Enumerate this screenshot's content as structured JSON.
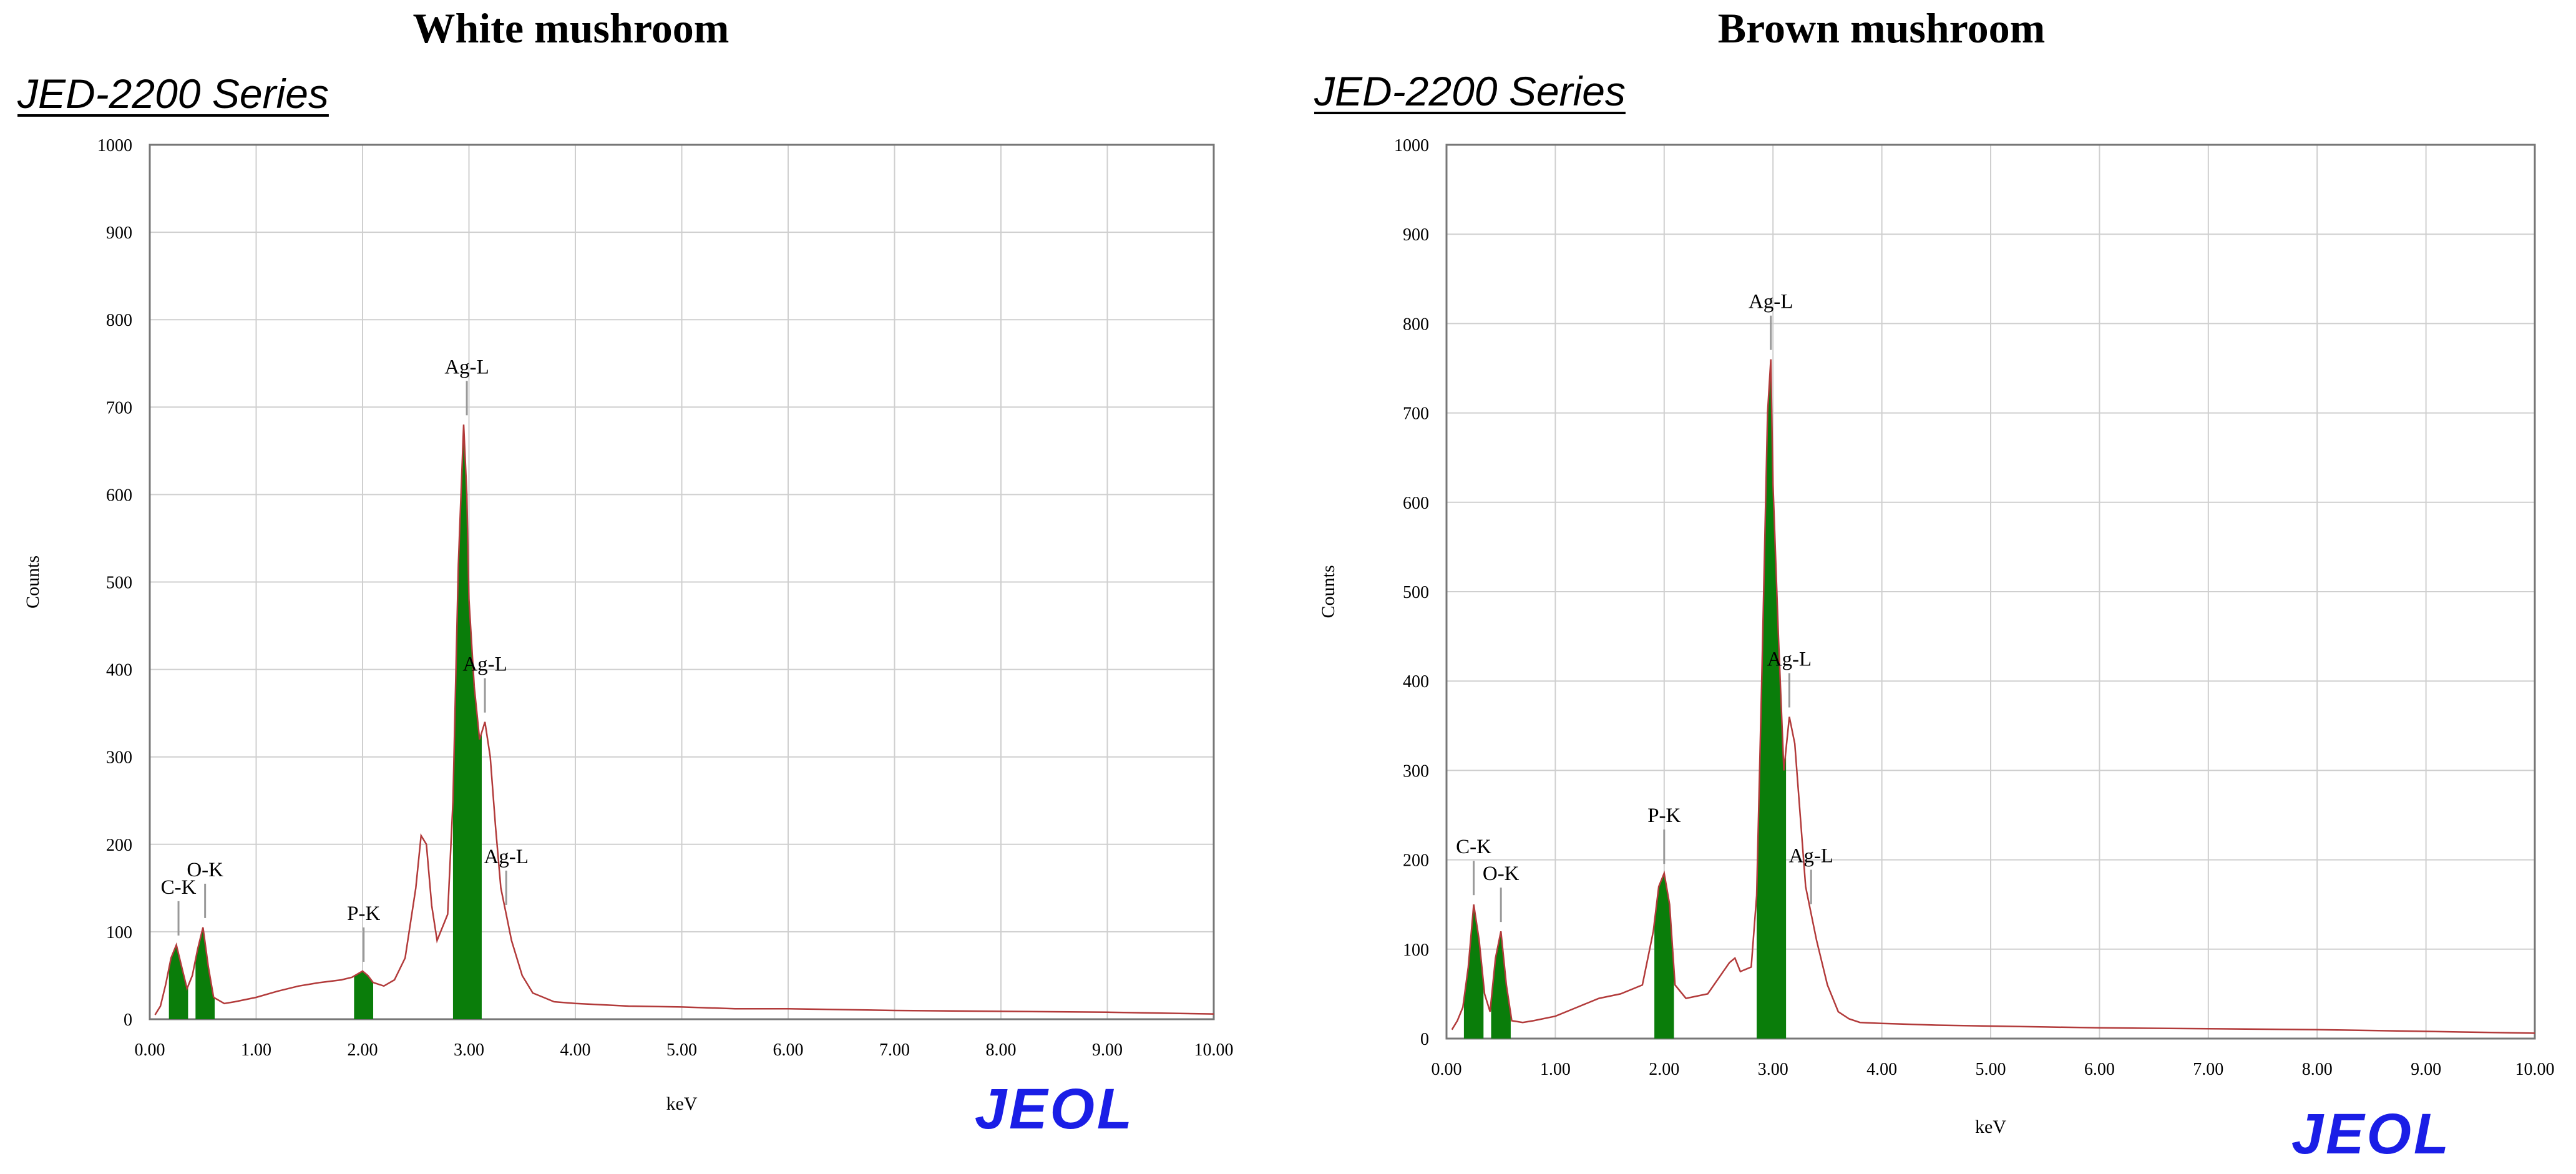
{
  "panels": [
    {
      "title": "White mushroom",
      "series_title": "JED-2200 Series",
      "logo": "JEOL"
    },
    {
      "title": "Brown mushroom",
      "series_title": "JED-2200 Series",
      "logo": "JEOL"
    }
  ],
  "colors": {
    "peak_fill": "#0a7d0a",
    "spectrum_line": "#b23a3a",
    "grid": "#cfcfcf",
    "logo": "#1a1ee6"
  },
  "chart_data": [
    {
      "type": "area",
      "title": "White mushroom",
      "subtitle": "JED-2200 Series",
      "xlabel": "keV",
      "ylabel": "Counts",
      "xlim": [
        0,
        10
      ],
      "ylim": [
        0,
        1000
      ],
      "x_ticks": [
        "0.00",
        "1.00",
        "2.00",
        "3.00",
        "4.00",
        "5.00",
        "6.00",
        "7.00",
        "8.00",
        "9.00",
        "10.00"
      ],
      "y_ticks": [
        "0",
        "100",
        "200",
        "300",
        "400",
        "500",
        "600",
        "700",
        "800",
        "900",
        "1000"
      ],
      "grid": true,
      "spectrum": {
        "x": [
          0.05,
          0.1,
          0.15,
          0.2,
          0.25,
          0.3,
          0.35,
          0.4,
          0.45,
          0.5,
          0.55,
          0.6,
          0.7,
          0.8,
          1.0,
          1.2,
          1.4,
          1.6,
          1.8,
          1.9,
          2.0,
          2.05,
          2.1,
          2.2,
          2.3,
          2.4,
          2.5,
          2.55,
          2.6,
          2.65,
          2.7,
          2.8,
          2.85,
          2.9,
          2.95,
          2.98,
          3.0,
          3.05,
          3.1,
          3.15,
          3.2,
          3.25,
          3.3,
          3.35,
          3.4,
          3.5,
          3.6,
          3.7,
          3.8,
          4.0,
          4.5,
          5.0,
          5.5,
          6.0,
          7.0,
          8.0,
          9.0,
          10.0
        ],
        "y": [
          5,
          15,
          40,
          70,
          85,
          60,
          35,
          50,
          80,
          105,
          60,
          25,
          18,
          20,
          25,
          32,
          38,
          42,
          45,
          48,
          55,
          50,
          42,
          38,
          45,
          70,
          150,
          210,
          200,
          130,
          90,
          120,
          250,
          520,
          680,
          600,
          480,
          380,
          320,
          340,
          300,
          220,
          150,
          120,
          90,
          50,
          30,
          25,
          20,
          18,
          15,
          14,
          12,
          12,
          10,
          9,
          8,
          6
        ]
      },
      "peaks": [
        {
          "label": "C-K",
          "x": 0.27,
          "counts": 85
        },
        {
          "label": "O-K",
          "x": 0.52,
          "counts": 105
        },
        {
          "label": "P-K",
          "x": 2.01,
          "counts": 55
        },
        {
          "label": "Ag-L",
          "x": 2.98,
          "counts": 680
        },
        {
          "label": "Ag-L",
          "x": 3.15,
          "counts": 340
        },
        {
          "label": "Ag-L",
          "x": 3.35,
          "counts": 120
        }
      ]
    },
    {
      "type": "area",
      "title": "Brown mushroom",
      "subtitle": "JED-2200 Series",
      "xlabel": "keV",
      "ylabel": "Counts",
      "xlim": [
        0,
        10
      ],
      "ylim": [
        0,
        1000
      ],
      "x_ticks": [
        "0.00",
        "1.00",
        "2.00",
        "3.00",
        "4.00",
        "5.00",
        "6.00",
        "7.00",
        "8.00",
        "9.00",
        "10.00"
      ],
      "y_ticks": [
        "0",
        "100",
        "200",
        "300",
        "400",
        "500",
        "600",
        "700",
        "800",
        "900",
        "1000"
      ],
      "grid": true,
      "spectrum": {
        "x": [
          0.05,
          0.1,
          0.15,
          0.2,
          0.25,
          0.3,
          0.35,
          0.4,
          0.45,
          0.5,
          0.55,
          0.6,
          0.7,
          0.8,
          1.0,
          1.2,
          1.4,
          1.6,
          1.8,
          1.9,
          1.95,
          2.0,
          2.05,
          2.1,
          2.2,
          2.4,
          2.6,
          2.65,
          2.7,
          2.8,
          2.85,
          2.9,
          2.95,
          2.98,
          3.0,
          3.05,
          3.1,
          3.15,
          3.2,
          3.25,
          3.3,
          3.35,
          3.4,
          3.5,
          3.6,
          3.7,
          3.8,
          4.0,
          4.5,
          5.0,
          5.5,
          6.0,
          7.0,
          8.0,
          9.0,
          10.0
        ],
        "y": [
          10,
          20,
          35,
          80,
          150,
          110,
          50,
          30,
          90,
          120,
          60,
          20,
          18,
          20,
          25,
          35,
          45,
          50,
          60,
          120,
          170,
          185,
          150,
          60,
          45,
          50,
          85,
          90,
          75,
          80,
          160,
          420,
          700,
          760,
          620,
          450,
          300,
          360,
          330,
          250,
          170,
          140,
          110,
          60,
          30,
          22,
          18,
          17,
          15,
          14,
          13,
          12,
          11,
          10,
          8,
          6
        ]
      },
      "peaks": [
        {
          "label": "C-K",
          "x": 0.25,
          "counts": 150
        },
        {
          "label": "O-K",
          "x": 0.5,
          "counts": 120
        },
        {
          "label": "P-K",
          "x": 2.0,
          "counts": 185
        },
        {
          "label": "Ag-L",
          "x": 2.98,
          "counts": 760
        },
        {
          "label": "Ag-L",
          "x": 3.15,
          "counts": 360
        },
        {
          "label": "Ag-L",
          "x": 3.35,
          "counts": 140
        }
      ]
    }
  ]
}
